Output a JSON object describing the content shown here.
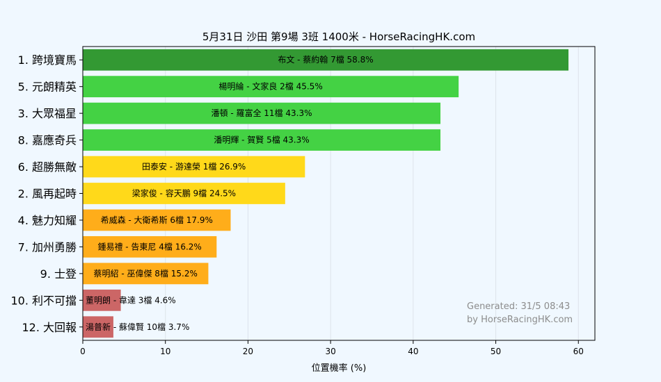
{
  "chart_data": {
    "type": "bar",
    "orientation": "horizontal",
    "title": "5月31日  沙田  第9場  3班  1400米 - HorseRacingHK.com",
    "xlabel": "位置機率 (%)",
    "ylabel": "",
    "xlim": [
      0,
      62
    ],
    "xticks": [
      0,
      10,
      20,
      30,
      40,
      50,
      60
    ],
    "grid": true,
    "categories": [
      "1. 跨境寶馬",
      "5. 元朗精英",
      "3. 大眾福星",
      "8. 嘉應奇兵",
      "6. 超勝無敵",
      "2. 風再起時",
      "4. 魅力知耀",
      "7. 加州勇勝",
      "9. 士登",
      "10. 利不可擋",
      "12. 大回報"
    ],
    "values": [
      58.8,
      45.5,
      43.3,
      43.3,
      26.9,
      24.5,
      17.9,
      16.2,
      15.2,
      4.6,
      3.7
    ],
    "annotations": [
      "布文 - 蔡約翰 7檔  58.8%",
      "楊明綸 - 文家良 2檔  45.5%",
      "潘頓 - 羅富全 11檔  43.3%",
      "潘明輝 - 賀賢 5檔  43.3%",
      "田泰安 - 游達榮 1檔  26.9%",
      "梁家俊 - 容天鵬 9檔  24.5%",
      "希威森 - 大衛希斯 6檔  17.9%",
      "鍾易禮 - 告東尼 4檔  16.2%",
      "蔡明紹 - 巫偉傑 8檔  15.2%",
      "董明朗 - 韋達 3檔  4.6%",
      "湯普新 - 蘇偉賢 10檔  3.7%"
    ],
    "bar_colors": [
      "#339933",
      "#44d244",
      "#44d244",
      "#44d244",
      "#ffd91a",
      "#ffd91a",
      "#ffad1a",
      "#ffad1a",
      "#ffad1a",
      "#cc6666",
      "#cc6666"
    ],
    "watermark": [
      "Generated: 31/5 08:43",
      "by HorseRacingHK.com"
    ]
  }
}
